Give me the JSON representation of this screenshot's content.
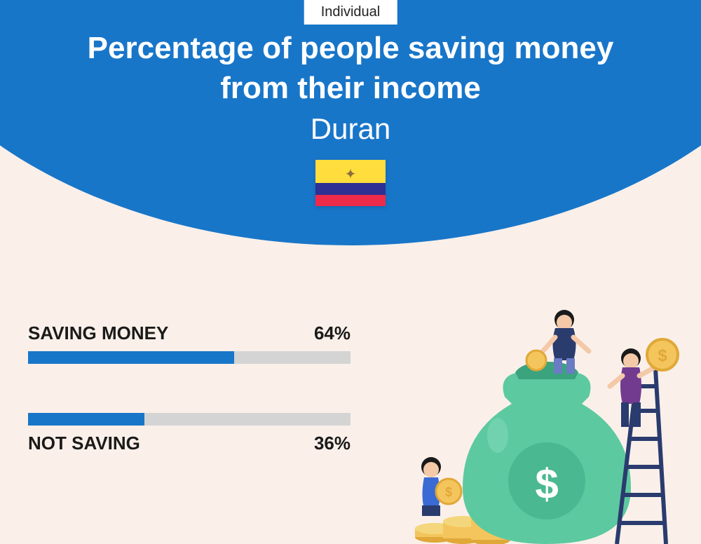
{
  "tag": "Individual",
  "title": "Percentage of people saving money from their income",
  "location": "Duran",
  "flag": {
    "stripes": [
      {
        "color": "#ffdd3c",
        "height": 33
      },
      {
        "color": "#2e3092",
        "height": 17
      },
      {
        "color": "#ee2a4b",
        "height": 16
      }
    ]
  },
  "bars": [
    {
      "label": "SAVING MONEY",
      "value": 64,
      "display": "64%",
      "position": "top"
    },
    {
      "label": "NOT SAVING",
      "value": 36,
      "display": "36%",
      "position": "bottom"
    }
  ],
  "style": {
    "header_bg": "#1876c9",
    "page_bg": "#faf0e9",
    "bar_fill": "#1876c9",
    "bar_track": "#d4d4d4",
    "text_dark": "#1a1a1a",
    "text_light": "#ffffff",
    "title_fontsize": 44,
    "label_fontsize": 26
  },
  "illustration": {
    "bag_color": "#5dc9a0",
    "bag_dark": "#3ba37e",
    "coin_color": "#f4c55c",
    "coin_dark": "#e0a838",
    "ladder_color": "#2a3b6e",
    "person1_shirt": "#2a3b6e",
    "person1_pants": "#6b7bc4",
    "person2_shirt": "#723b8f",
    "person2_pants": "#2a3b6e",
    "person3_shirt": "#3a6bd4",
    "skin": "#f4c9a8"
  }
}
